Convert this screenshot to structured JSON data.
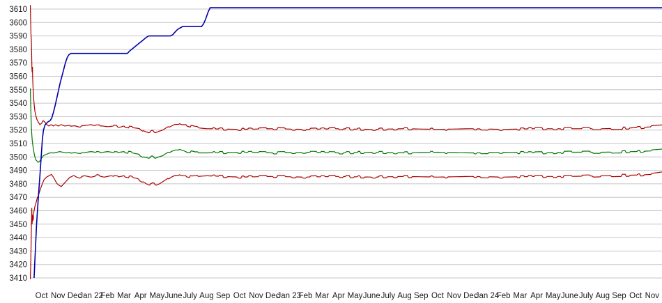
{
  "colors": {
    "background": "#ffffff",
    "gridline": "#c6c6c6",
    "tick_text": "#1a1a1a"
  },
  "chart_data": {
    "type": "line",
    "title": "",
    "xlabel": "",
    "ylabel": "",
    "grid": "horizontal",
    "legend": "none",
    "y_axis": {
      "min": 3410,
      "max": 3610,
      "step": 10,
      "tick_labels": [
        "3410",
        "3420",
        "3430",
        "3440",
        "3450",
        "3460",
        "3470",
        "3480",
        "3490",
        "3500",
        "3510",
        "3520",
        "3530",
        "3540",
        "3550",
        "3560",
        "3570",
        "3580",
        "3590",
        "3600",
        "3610"
      ]
    },
    "x_axis": {
      "unit": "month",
      "tick_labels": [
        "Oct",
        "Nov",
        "Dec",
        "Jan 22",
        "Feb",
        "Mar",
        "Apr",
        "May",
        "June",
        "July",
        "Aug",
        "Sep",
        "Oct",
        "Nov",
        "Dec",
        "Jan 23",
        "Feb",
        "Mar",
        "Apr",
        "May",
        "June",
        "July",
        "Aug",
        "Sep",
        "Oct",
        "Nov",
        "Dec",
        "Jan 24",
        "Feb",
        "Mar",
        "Apr",
        "May",
        "June",
        "July",
        "Aug",
        "Sep",
        "Oct",
        "Nov"
      ],
      "data_start": -0.7,
      "data_end": 37.6
    },
    "noise": {
      "start_m": 1.3,
      "amplitude": 0.8,
      "cell": 0.22
    },
    "series": [
      {
        "name": "red-upper",
        "color": "#aa0000",
        "width": 1.2,
        "noisy": true,
        "points": [
          [
            -0.68,
            3613
          ],
          [
            -0.66,
            3604
          ],
          [
            -0.64,
            3592
          ],
          [
            -0.62,
            3588
          ],
          [
            -0.6,
            3577
          ],
          [
            -0.58,
            3566
          ],
          [
            -0.57,
            3563
          ],
          [
            -0.55,
            3567
          ],
          [
            -0.54,
            3560
          ],
          [
            -0.52,
            3553
          ],
          [
            -0.5,
            3549
          ],
          [
            -0.47,
            3543
          ],
          [
            -0.44,
            3538
          ],
          [
            -0.4,
            3534
          ],
          [
            -0.35,
            3531
          ],
          [
            -0.28,
            3528
          ],
          [
            -0.2,
            3526
          ],
          [
            -0.1,
            3524
          ],
          [
            0.0,
            3525
          ],
          [
            0.1,
            3527
          ],
          [
            0.2,
            3526
          ],
          [
            0.32,
            3524
          ],
          [
            0.45,
            3523
          ],
          [
            0.58,
            3524
          ],
          [
            0.72,
            3523
          ],
          [
            0.86,
            3524
          ],
          [
            1.0,
            3523
          ],
          [
            1.2,
            3524
          ],
          [
            1.4,
            3523
          ],
          [
            1.7,
            3523.5
          ],
          [
            2.0,
            3524
          ],
          [
            2.3,
            3523
          ],
          [
            2.7,
            3523.5
          ],
          [
            3.0,
            3524
          ],
          [
            3.3,
            3523
          ],
          [
            3.7,
            3523
          ],
          [
            4.0,
            3522.5
          ],
          [
            4.4,
            3523
          ],
          [
            4.7,
            3522
          ],
          [
            5.0,
            3523
          ],
          [
            5.4,
            3522
          ],
          [
            5.7,
            3521.5
          ],
          [
            6.0,
            3521
          ],
          [
            6.25,
            3519
          ],
          [
            6.5,
            3518
          ],
          [
            6.7,
            3519
          ],
          [
            6.9,
            3518
          ],
          [
            7.1,
            3519
          ],
          [
            7.35,
            3520
          ],
          [
            7.6,
            3522
          ],
          [
            7.9,
            3524
          ],
          [
            8.1,
            3525
          ],
          [
            8.3,
            3525
          ],
          [
            8.5,
            3524
          ],
          [
            8.75,
            3524
          ],
          [
            9.0,
            3523
          ],
          [
            9.3,
            3522
          ],
          [
            9.6,
            3521.5
          ],
          [
            10.0,
            3521
          ],
          [
            12,
            3520.5
          ],
          [
            14,
            3521
          ],
          [
            16,
            3520.5
          ],
          [
            18,
            3521
          ],
          [
            20,
            3520.5
          ],
          [
            22,
            3521
          ],
          [
            24,
            3520.5
          ],
          [
            26,
            3521
          ],
          [
            28,
            3520.5
          ],
          [
            30,
            3521
          ],
          [
            32,
            3521
          ],
          [
            34,
            3521
          ],
          [
            35.5,
            3521.5
          ],
          [
            36.5,
            3522
          ],
          [
            37.6,
            3523
          ]
        ]
      },
      {
        "name": "red-lower",
        "color": "#aa0000",
        "width": 1.2,
        "noisy": true,
        "points": [
          [
            -0.68,
            3409
          ],
          [
            -0.66,
            3416
          ],
          [
            -0.645,
            3425
          ],
          [
            -0.63,
            3437
          ],
          [
            -0.615,
            3448
          ],
          [
            -0.6,
            3455
          ],
          [
            -0.59,
            3462
          ],
          [
            -0.58,
            3455
          ],
          [
            -0.57,
            3450
          ],
          [
            -0.555,
            3457
          ],
          [
            -0.54,
            3452
          ],
          [
            -0.52,
            3456
          ],
          [
            -0.5,
            3453
          ],
          [
            -0.48,
            3458
          ],
          [
            -0.45,
            3460
          ],
          [
            -0.42,
            3462
          ],
          [
            -0.38,
            3464
          ],
          [
            -0.33,
            3466
          ],
          [
            -0.27,
            3469
          ],
          [
            -0.2,
            3471
          ],
          [
            -0.12,
            3474
          ],
          [
            -0.04,
            3477
          ],
          [
            0.05,
            3480
          ],
          [
            0.15,
            3483
          ],
          [
            0.3,
            3485
          ],
          [
            0.45,
            3486
          ],
          [
            0.6,
            3487
          ],
          [
            0.72,
            3485
          ],
          [
            0.85,
            3482
          ],
          [
            0.95,
            3480
          ],
          [
            1.05,
            3479
          ],
          [
            1.2,
            3478
          ],
          [
            1.35,
            3480
          ],
          [
            1.5,
            3482
          ],
          [
            1.65,
            3484
          ],
          [
            1.8,
            3486
          ],
          [
            1.95,
            3487
          ],
          [
            2.1,
            3486
          ],
          [
            2.3,
            3485
          ],
          [
            2.6,
            3486
          ],
          [
            3.0,
            3485
          ],
          [
            3.4,
            3486
          ],
          [
            3.8,
            3485
          ],
          [
            4.2,
            3486
          ],
          [
            4.6,
            3485
          ],
          [
            5.0,
            3486
          ],
          [
            5.4,
            3485
          ],
          [
            5.8,
            3484
          ],
          [
            6.1,
            3482
          ],
          [
            6.35,
            3480
          ],
          [
            6.55,
            3479
          ],
          [
            6.75,
            3480
          ],
          [
            6.95,
            3479
          ],
          [
            7.15,
            3480
          ],
          [
            7.4,
            3482
          ],
          [
            7.65,
            3484
          ],
          [
            7.9,
            3486
          ],
          [
            8.1,
            3487
          ],
          [
            8.3,
            3487
          ],
          [
            8.55,
            3486
          ],
          [
            8.8,
            3486
          ],
          [
            9.1,
            3485
          ],
          [
            9.5,
            3485.5
          ],
          [
            10,
            3486
          ],
          [
            12,
            3485
          ],
          [
            14,
            3485.5
          ],
          [
            16,
            3485
          ],
          [
            18,
            3485.5
          ],
          [
            20,
            3485
          ],
          [
            22,
            3485.5
          ],
          [
            24,
            3485
          ],
          [
            26,
            3485.5
          ],
          [
            28,
            3485
          ],
          [
            30,
            3485.5
          ],
          [
            32,
            3485.5
          ],
          [
            34,
            3486
          ],
          [
            36,
            3486.5
          ],
          [
            37,
            3487
          ],
          [
            37.6,
            3488
          ]
        ]
      },
      {
        "name": "green-middle",
        "color": "#007700",
        "width": 1.2,
        "noisy": true,
        "points": [
          [
            -0.68,
            3551
          ],
          [
            -0.65,
            3536
          ],
          [
            -0.62,
            3524
          ],
          [
            -0.59,
            3517
          ],
          [
            -0.56,
            3512
          ],
          [
            -0.52,
            3508
          ],
          [
            -0.48,
            3505
          ],
          [
            -0.44,
            3502
          ],
          [
            -0.4,
            3500
          ],
          [
            -0.35,
            3498
          ],
          [
            -0.28,
            3497
          ],
          [
            -0.2,
            3496
          ],
          [
            -0.1,
            3497
          ],
          [
            0.0,
            3499
          ],
          [
            0.12,
            3501
          ],
          [
            0.3,
            3502
          ],
          [
            0.5,
            3503
          ],
          [
            0.8,
            3503
          ],
          [
            1.1,
            3504
          ],
          [
            1.5,
            3503
          ],
          [
            2.0,
            3504
          ],
          [
            2.5,
            3503
          ],
          [
            3.0,
            3504
          ],
          [
            3.5,
            3503
          ],
          [
            4.0,
            3504
          ],
          [
            4.5,
            3503
          ],
          [
            5.0,
            3504
          ],
          [
            5.5,
            3503
          ],
          [
            5.9,
            3502
          ],
          [
            6.2,
            3500
          ],
          [
            6.5,
            3499
          ],
          [
            6.7,
            3500
          ],
          [
            6.9,
            3499
          ],
          [
            7.1,
            3500
          ],
          [
            7.35,
            3501
          ],
          [
            7.6,
            3503
          ],
          [
            7.9,
            3505
          ],
          [
            8.1,
            3506
          ],
          [
            8.3,
            3506
          ],
          [
            8.5,
            3505
          ],
          [
            8.75,
            3504
          ],
          [
            9.0,
            3504
          ],
          [
            9.3,
            3503
          ],
          [
            10,
            3503
          ],
          [
            12,
            3503.5
          ],
          [
            14,
            3503
          ],
          [
            16,
            3503.5
          ],
          [
            18,
            3503
          ],
          [
            20,
            3503.5
          ],
          [
            22,
            3503
          ],
          [
            24,
            3503.5
          ],
          [
            26,
            3503
          ],
          [
            28,
            3503.5
          ],
          [
            30,
            3503
          ],
          [
            32,
            3503.5
          ],
          [
            34,
            3503.5
          ],
          [
            36,
            3504
          ],
          [
            37,
            3504.5
          ],
          [
            37.6,
            3505
          ]
        ]
      },
      {
        "name": "blue-stepped",
        "color": "#0000aa",
        "width": 1.6,
        "noisy": false,
        "points": [
          [
            -0.45,
            3410
          ],
          [
            -0.3,
            3450
          ],
          [
            -0.15,
            3477
          ],
          [
            -0.02,
            3500
          ],
          [
            0.05,
            3513
          ],
          [
            0.12,
            3520
          ],
          [
            0.22,
            3524
          ],
          [
            0.38,
            3526
          ],
          [
            0.52,
            3527
          ],
          [
            0.62,
            3529
          ],
          [
            0.72,
            3533
          ],
          [
            0.86,
            3540
          ],
          [
            1.0,
            3548
          ],
          [
            1.15,
            3556
          ],
          [
            1.3,
            3563
          ],
          [
            1.45,
            3570
          ],
          [
            1.56,
            3574
          ],
          [
            1.66,
            3576
          ],
          [
            1.78,
            3577
          ],
          [
            5.2,
            3577
          ],
          [
            5.36,
            3579
          ],
          [
            5.56,
            3581
          ],
          [
            5.76,
            3583
          ],
          [
            5.96,
            3585
          ],
          [
            6.16,
            3587
          ],
          [
            6.36,
            3589
          ],
          [
            6.5,
            3590
          ],
          [
            7.8,
            3590
          ],
          [
            7.96,
            3591
          ],
          [
            8.1,
            3593
          ],
          [
            8.26,
            3595
          ],
          [
            8.4,
            3596
          ],
          [
            8.56,
            3597
          ],
          [
            9.7,
            3597
          ],
          [
            9.82,
            3599
          ],
          [
            9.96,
            3603
          ],
          [
            10.1,
            3608
          ],
          [
            10.22,
            3611
          ],
          [
            37.6,
            3611
          ]
        ]
      }
    ]
  }
}
